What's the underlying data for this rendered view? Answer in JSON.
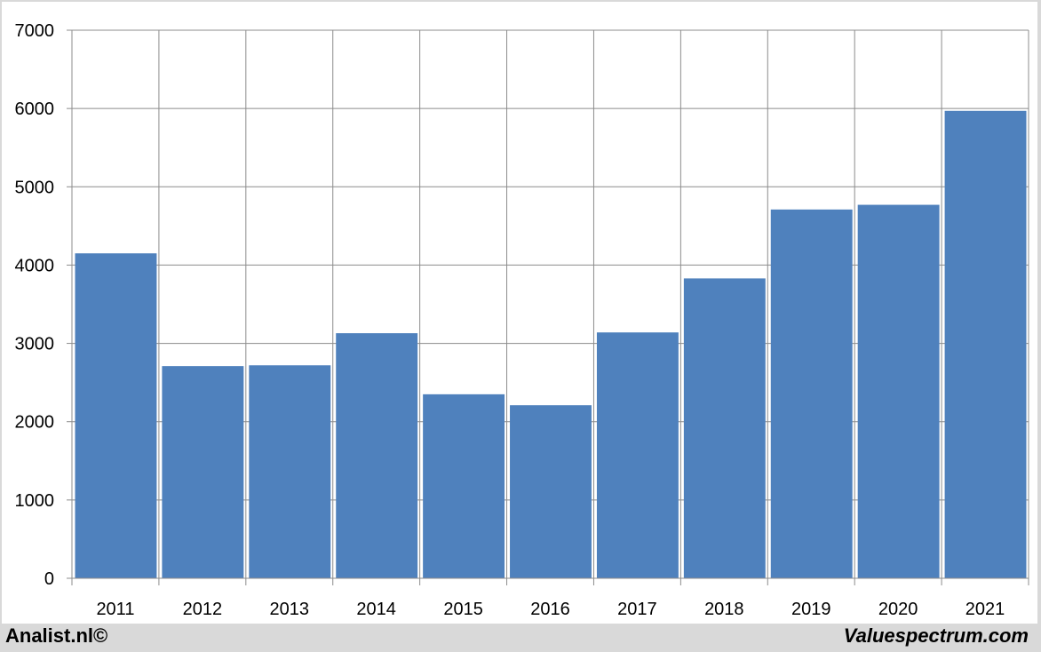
{
  "chart_data": {
    "type": "bar",
    "categories": [
      "2011",
      "2012",
      "2013",
      "2014",
      "2015",
      "2016",
      "2017",
      "2018",
      "2019",
      "2020",
      "2021"
    ],
    "values": [
      4150,
      2710,
      2720,
      3130,
      2350,
      2210,
      3140,
      3830,
      4710,
      4770,
      5970
    ],
    "ylim": [
      0,
      7000
    ],
    "yticks": [
      "0",
      "1000",
      "2000",
      "3000",
      "4000",
      "5000",
      "6000",
      "7000"
    ],
    "grid": true,
    "bar_color": "#4f81bd",
    "title": "",
    "xlabel": "",
    "ylabel": ""
  },
  "footer": {
    "left": "Analist.nl©",
    "right": "Valuespectrum.com"
  }
}
